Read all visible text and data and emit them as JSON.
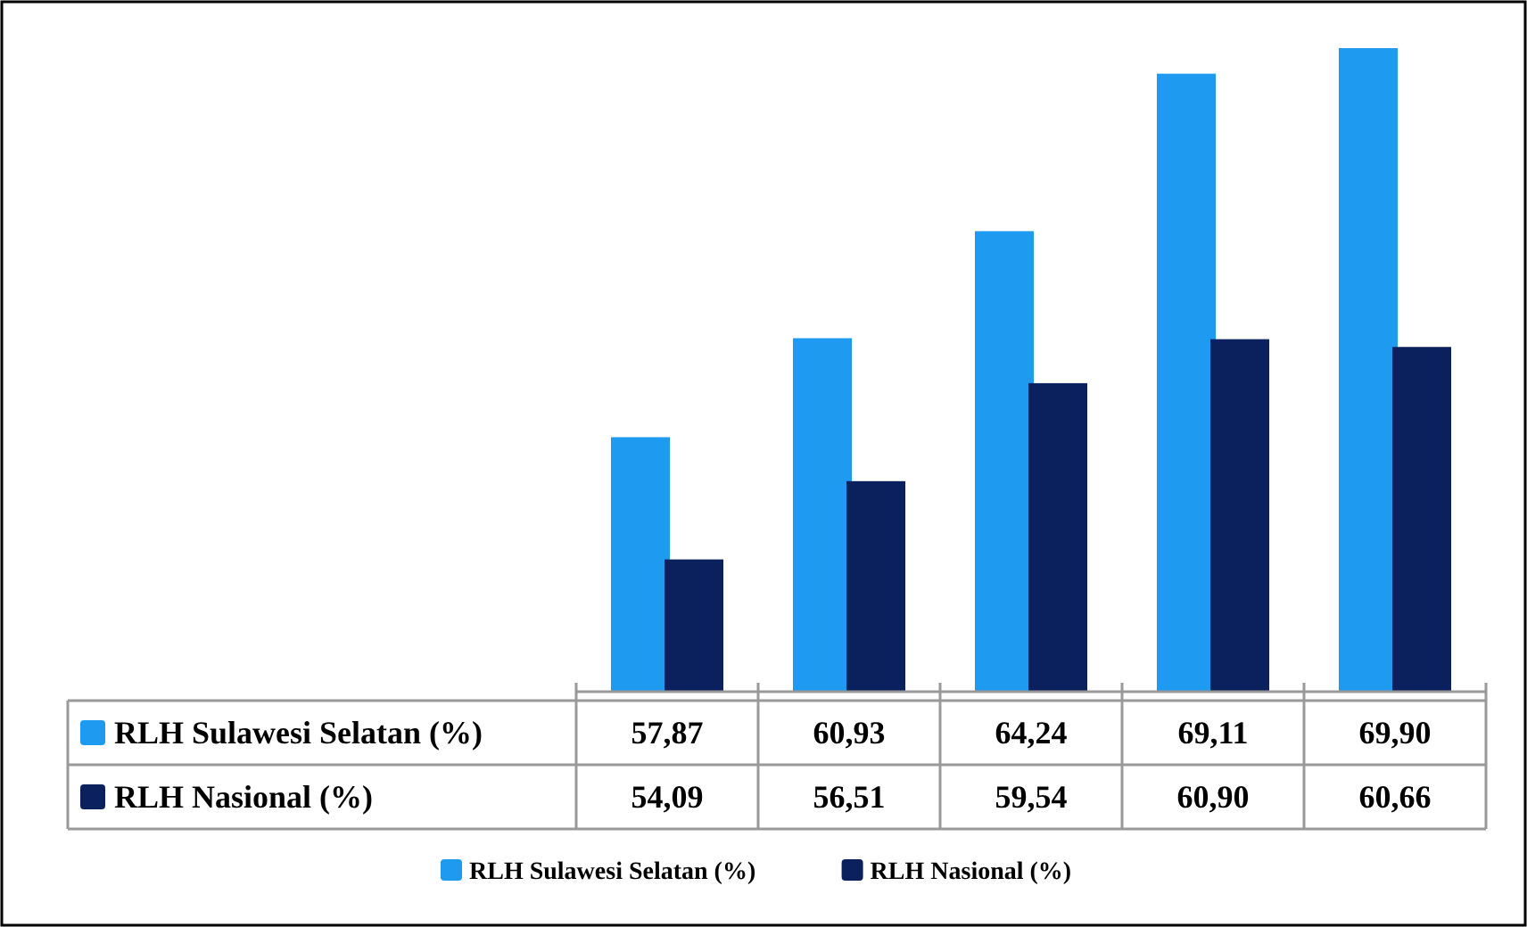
{
  "chart_data": {
    "type": "bar",
    "categories": [
      null,
      null,
      null,
      null,
      null
    ],
    "series": [
      {
        "name": "RLH Sulawesi Selatan (%)",
        "color": "#1e9bf0",
        "values": [
          57.87,
          60.93,
          64.24,
          69.11,
          69.9
        ],
        "value_labels": [
          "57,87",
          "60,93",
          "64,24",
          "69,11",
          "69,90"
        ]
      },
      {
        "name": "RLH Nasional (%)",
        "color": "#0b215e",
        "values": [
          54.09,
          56.51,
          59.54,
          60.9,
          60.66
        ],
        "value_labels": [
          "54,09",
          "56,51",
          "59,54",
          "60,90",
          "60,66"
        ]
      }
    ],
    "ylim": [
      50,
      69.9
    ],
    "legend": "bottom",
    "tick_labels": false,
    "grid": false
  }
}
